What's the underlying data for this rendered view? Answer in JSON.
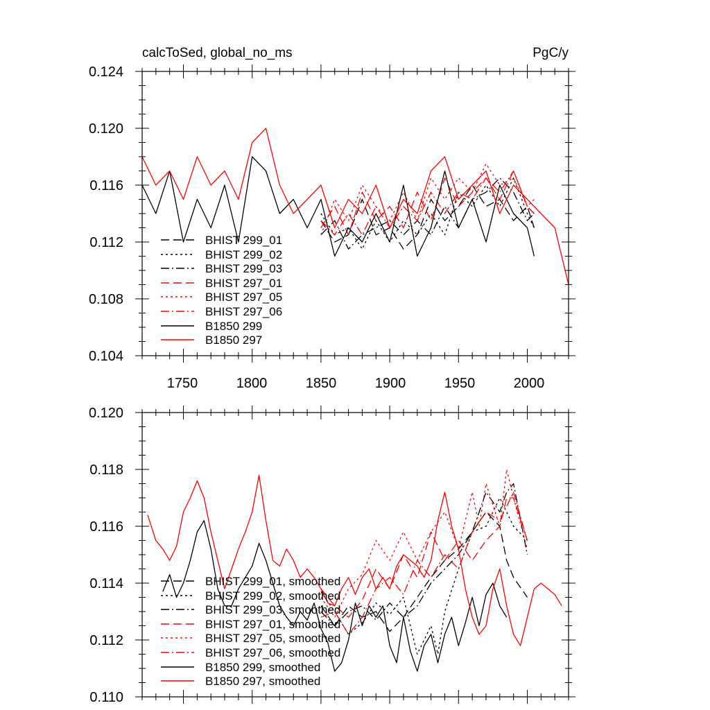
{
  "chart_data": [
    {
      "type": "line",
      "title": "calcToSed, global_no_ms",
      "units": "PgC/y",
      "xlim": [
        1720,
        2030
      ],
      "ylim": [
        0.104,
        0.124
      ],
      "xticks": [
        1750,
        1800,
        1850,
        1900,
        1950,
        2000
      ],
      "yticks": [
        0.104,
        0.108,
        0.112,
        0.116,
        0.12,
        0.124
      ],
      "ytick_labels": [
        "0.104",
        "0.108",
        "0.112",
        "0.116",
        "0.120",
        "0.124"
      ],
      "xtick_labels": [
        "1750",
        "1800",
        "1850",
        "1900",
        "1950",
        "2000"
      ],
      "legend_position": "bottom-left",
      "legend": [
        "BHIST 299_01",
        "BHIST 299_02",
        "BHIST 299_03",
        "BHIST 297_01",
        "BHIST 297_05",
        "BHIST 297_06",
        "B1850 299",
        "B1850 297"
      ],
      "series": [
        {
          "name": "BHIST 299_01",
          "color": "#000000",
          "dash": "long",
          "x": [
            1850,
            1860,
            1870,
            1880,
            1890,
            1900,
            1910,
            1920,
            1930,
            1940,
            1950,
            1960,
            1970,
            1980,
            1990,
            2000,
            2005
          ],
          "y": [
            0.1135,
            0.112,
            0.1125,
            0.115,
            0.1125,
            0.113,
            0.1115,
            0.1125,
            0.115,
            0.1135,
            0.1145,
            0.116,
            0.1145,
            0.115,
            0.1135,
            0.1145,
            0.113
          ]
        },
        {
          "name": "BHIST 299_02",
          "color": "#000000",
          "dash": "short",
          "x": [
            1850,
            1860,
            1870,
            1880,
            1890,
            1900,
            1910,
            1920,
            1930,
            1940,
            1950,
            1960,
            1970,
            1980,
            1990,
            2000,
            2005
          ],
          "y": [
            0.114,
            0.1125,
            0.113,
            0.1115,
            0.1135,
            0.112,
            0.1135,
            0.1125,
            0.114,
            0.1125,
            0.1155,
            0.1145,
            0.116,
            0.1145,
            0.1165,
            0.114,
            0.113
          ]
        },
        {
          "name": "BHIST 299_03",
          "color": "#000000",
          "dash": "dashdot",
          "x": [
            1850,
            1860,
            1870,
            1880,
            1890,
            1900,
            1910,
            1920,
            1930,
            1940,
            1950,
            1960,
            1970,
            1980,
            1990,
            2000,
            2005
          ],
          "y": [
            0.1125,
            0.1135,
            0.1115,
            0.1125,
            0.113,
            0.1135,
            0.1125,
            0.1135,
            0.1125,
            0.1145,
            0.113,
            0.115,
            0.1155,
            0.1165,
            0.1155,
            0.1135,
            0.114
          ]
        },
        {
          "name": "BHIST 297_01",
          "color": "#ff0000",
          "dash": "long",
          "x": [
            1850,
            1860,
            1870,
            1880,
            1890,
            1900,
            1910,
            1920,
            1930,
            1940,
            1950,
            1960,
            1970,
            1980,
            1990,
            2000,
            2005
          ],
          "y": [
            0.113,
            0.1145,
            0.1125,
            0.1155,
            0.1135,
            0.1145,
            0.113,
            0.1155,
            0.1135,
            0.1165,
            0.1145,
            0.1155,
            0.1165,
            0.115,
            0.117,
            0.1145,
            0.114
          ]
        },
        {
          "name": "BHIST 297_05",
          "color": "#ff0000",
          "dash": "short",
          "x": [
            1850,
            1860,
            1870,
            1880,
            1890,
            1900,
            1910,
            1920,
            1930,
            1940,
            1950,
            1960,
            1970,
            1980,
            1990,
            2000,
            2005
          ],
          "y": [
            0.1125,
            0.115,
            0.1135,
            0.116,
            0.1145,
            0.1135,
            0.1155,
            0.1135,
            0.1165,
            0.115,
            0.1165,
            0.1155,
            0.1175,
            0.116,
            0.1165,
            0.1145,
            0.115
          ]
        },
        {
          "name": "BHIST 297_06",
          "color": "#ff0000",
          "dash": "dashdot",
          "x": [
            1850,
            1860,
            1870,
            1880,
            1890,
            1900,
            1910,
            1920,
            1930,
            1940,
            1950,
            1960,
            1970,
            1980,
            1990,
            2000,
            2005
          ],
          "y": [
            0.1135,
            0.1125,
            0.114,
            0.1125,
            0.1145,
            0.113,
            0.1145,
            0.1135,
            0.1155,
            0.114,
            0.1155,
            0.115,
            0.1165,
            0.1155,
            0.117,
            0.1145,
            0.114
          ]
        },
        {
          "name": "B1850 299",
          "color": "#000000",
          "dash": "solid",
          "x": [
            1720,
            1730,
            1740,
            1750,
            1760,
            1770,
            1780,
            1790,
            1800,
            1810,
            1820,
            1830,
            1840,
            1850,
            1860,
            1870,
            1880,
            1890,
            1900,
            1910,
            1920,
            1930,
            1940,
            1950,
            1960,
            1970,
            1980,
            1990,
            2000,
            2005
          ],
          "y": [
            0.116,
            0.114,
            0.117,
            0.112,
            0.115,
            0.113,
            0.116,
            0.112,
            0.118,
            0.117,
            0.114,
            0.115,
            0.113,
            0.115,
            0.111,
            0.113,
            0.112,
            0.114,
            0.112,
            0.116,
            0.111,
            0.113,
            0.117,
            0.113,
            0.115,
            0.112,
            0.116,
            0.114,
            0.113,
            0.111
          ]
        },
        {
          "name": "B1850 297",
          "color": "#ff0000",
          "dash": "solid",
          "x": [
            1720,
            1730,
            1740,
            1750,
            1760,
            1770,
            1780,
            1790,
            1800,
            1810,
            1820,
            1830,
            1840,
            1850,
            1860,
            1870,
            1880,
            1890,
            1900,
            1910,
            1920,
            1930,
            1940,
            1950,
            1960,
            1970,
            1980,
            1990,
            2000,
            2010,
            2020,
            2030
          ],
          "y": [
            0.118,
            0.116,
            0.117,
            0.115,
            0.118,
            0.116,
            0.117,
            0.115,
            0.119,
            0.12,
            0.116,
            0.114,
            0.115,
            0.116,
            0.113,
            0.115,
            0.114,
            0.116,
            0.113,
            0.115,
            0.114,
            0.117,
            0.118,
            0.115,
            0.116,
            0.117,
            0.114,
            0.116,
            0.115,
            0.114,
            0.113,
            0.109
          ]
        }
      ]
    },
    {
      "type": "line",
      "title": "",
      "xlim": [
        1720,
        2030
      ],
      "ylim": [
        0.11,
        0.12
      ],
      "xticks": [
        1750,
        1800,
        1850,
        1900,
        1950,
        2000
      ],
      "yticks": [
        0.11,
        0.112,
        0.114,
        0.116,
        0.118,
        0.12
      ],
      "ytick_labels": [
        "0.110",
        "0.112",
        "0.114",
        "0.116",
        "0.118",
        "0.120"
      ],
      "legend_position": "bottom-left",
      "legend": [
        "BHIST 299_01, smoothed",
        "BHIST 299_02, smoothed",
        "BHIST 299_03, smoothed",
        "BHIST 297_01, smoothed",
        "BHIST 297_05, smoothed",
        "BHIST 297_06, smoothed",
        "B1850 299, smoothed",
        "B1850 297, smoothed"
      ],
      "series": [
        {
          "name": "BHIST 299_01, smoothed",
          "color": "#000000",
          "dash": "long",
          "x": [
            1850,
            1860,
            1870,
            1880,
            1890,
            1900,
            1910,
            1920,
            1930,
            1940,
            1950,
            1960,
            1970,
            1980,
            1985,
            1990,
            2000
          ],
          "y": [
            0.1132,
            0.1125,
            0.1132,
            0.1128,
            0.113,
            0.1123,
            0.1128,
            0.1135,
            0.1142,
            0.1148,
            0.1152,
            0.1158,
            0.1165,
            0.116,
            0.1148,
            0.1142,
            0.1135
          ]
        },
        {
          "name": "BHIST 299_02, smoothed",
          "color": "#000000",
          "dash": "short",
          "x": [
            1850,
            1860,
            1870,
            1880,
            1890,
            1900,
            1910,
            1920,
            1930,
            1935,
            1940,
            1950,
            1960,
            1970,
            1980,
            1990,
            2000
          ],
          "y": [
            0.1137,
            0.113,
            0.1122,
            0.1126,
            0.1133,
            0.1129,
            0.1135,
            0.1115,
            0.1125,
            0.1115,
            0.113,
            0.1145,
            0.1158,
            0.116,
            0.117,
            0.116,
            0.1155
          ]
        },
        {
          "name": "BHIST 299_03, smoothed",
          "color": "#000000",
          "dash": "dashdot",
          "x": [
            1850,
            1860,
            1870,
            1880,
            1890,
            1900,
            1910,
            1920,
            1930,
            1940,
            1950,
            1960,
            1970,
            1980,
            1985,
            1990,
            2000
          ],
          "y": [
            0.113,
            0.1125,
            0.113,
            0.1132,
            0.1127,
            0.1133,
            0.1128,
            0.1132,
            0.114,
            0.1145,
            0.115,
            0.1158,
            0.1172,
            0.1165,
            0.1172,
            0.1175,
            0.115
          ]
        },
        {
          "name": "BHIST 297_01, smoothed",
          "color": "#ff0000",
          "dash": "long",
          "x": [
            1850,
            1860,
            1870,
            1880,
            1890,
            1900,
            1910,
            1920,
            1930,
            1940,
            1950,
            1960,
            1970,
            1980,
            1985,
            1990,
            2000
          ],
          "y": [
            0.1138,
            0.1132,
            0.1128,
            0.1134,
            0.1145,
            0.1138,
            0.115,
            0.1142,
            0.1158,
            0.1148,
            0.1155,
            0.1148,
            0.1155,
            0.116,
            0.117,
            0.117,
            0.1155
          ]
        },
        {
          "name": "BHIST 297_05, smoothed",
          "color": "#ff0000",
          "dash": "short",
          "x": [
            1850,
            1860,
            1870,
            1880,
            1890,
            1900,
            1910,
            1920,
            1930,
            1940,
            1950,
            1960,
            1965,
            1970,
            1980,
            1985,
            1990,
            2000
          ],
          "y": [
            0.1135,
            0.1128,
            0.1138,
            0.1143,
            0.1155,
            0.1148,
            0.1158,
            0.1148,
            0.1158,
            0.1165,
            0.1152,
            0.1172,
            0.116,
            0.1175,
            0.116,
            0.118,
            0.117,
            0.1152
          ]
        },
        {
          "name": "BHIST 297_06, smoothed",
          "color": "#ff0000",
          "dash": "dashdot",
          "x": [
            1850,
            1860,
            1870,
            1880,
            1890,
            1900,
            1910,
            1920,
            1930,
            1940,
            1950,
            1960,
            1970,
            1980,
            1990,
            2000
          ],
          "y": [
            0.1128,
            0.113,
            0.1122,
            0.1128,
            0.1138,
            0.1142,
            0.1136,
            0.1148,
            0.1142,
            0.115,
            0.1145,
            0.1158,
            0.1165,
            0.1162,
            0.1172,
            0.1155
          ]
        },
        {
          "name": "B1850 299, smoothed",
          "color": "#000000",
          "dash": "solid",
          "x": [
            1735,
            1740,
            1745,
            1750,
            1755,
            1760,
            1765,
            1770,
            1775,
            1780,
            1785,
            1790,
            1795,
            1800,
            1805,
            1810,
            1815,
            1820,
            1825,
            1830,
            1835,
            1840,
            1845,
            1850,
            1855,
            1860,
            1865,
            1870,
            1875,
            1880,
            1885,
            1890,
            1895,
            1900,
            1905,
            1910,
            1915,
            1920,
            1925,
            1930,
            1935,
            1940,
            1945,
            1950,
            1955,
            1960,
            1965,
            1970,
            1975,
            1980,
            1985
          ],
          "y": [
            0.1137,
            0.1143,
            0.1135,
            0.114,
            0.1148,
            0.1158,
            0.1162,
            0.1152,
            0.1138,
            0.1132,
            0.1132,
            0.1138,
            0.1142,
            0.1146,
            0.1154,
            0.1148,
            0.114,
            0.1132,
            0.1128,
            0.1125,
            0.113,
            0.1127,
            0.1133,
            0.1124,
            0.1119,
            0.1109,
            0.1112,
            0.112,
            0.1133,
            0.1125,
            0.1132,
            0.1128,
            0.1132,
            0.1118,
            0.1112,
            0.1128,
            0.1116,
            0.1109,
            0.1118,
            0.1122,
            0.1112,
            0.1122,
            0.1128,
            0.1118,
            0.1126,
            0.1135,
            0.1125,
            0.1136,
            0.114,
            0.1132,
            0.1128
          ]
        },
        {
          "name": "B1850 297, smoothed",
          "color": "#ff0000",
          "dash": "solid",
          "x": [
            1724,
            1730,
            1735,
            1740,
            1745,
            1750,
            1755,
            1760,
            1765,
            1770,
            1775,
            1780,
            1785,
            1790,
            1795,
            1800,
            1805,
            1810,
            1815,
            1820,
            1825,
            1830,
            1835,
            1840,
            1845,
            1850,
            1855,
            1860,
            1865,
            1870,
            1875,
            1880,
            1885,
            1890,
            1895,
            1900,
            1905,
            1910,
            1915,
            1920,
            1925,
            1930,
            1935,
            1940,
            1945,
            1950,
            1955,
            1960,
            1965,
            1970,
            1975,
            1980,
            1985,
            1990,
            1995,
            2000,
            2005,
            2010,
            2015,
            2020,
            2025
          ],
          "y": [
            0.1164,
            0.1155,
            0.1152,
            0.1148,
            0.1153,
            0.1165,
            0.117,
            0.1176,
            0.117,
            0.1158,
            0.1148,
            0.1138,
            0.1145,
            0.1152,
            0.1158,
            0.1165,
            0.1178,
            0.1162,
            0.1148,
            0.1146,
            0.1152,
            0.1148,
            0.1142,
            0.1145,
            0.1142,
            0.1138,
            0.1133,
            0.1132,
            0.1138,
            0.1142,
            0.1136,
            0.1142,
            0.1145,
            0.1138,
            0.1142,
            0.1138,
            0.1146,
            0.115,
            0.1148,
            0.1146,
            0.1142,
            0.1148,
            0.1162,
            0.1172,
            0.116,
            0.1152,
            0.1138,
            0.1128,
            0.1122,
            0.1125,
            0.1138,
            0.1145,
            0.1132,
            0.1122,
            0.1118,
            0.1128,
            0.1138,
            0.114,
            0.1138,
            0.1136,
            0.1132
          ]
        }
      ]
    }
  ]
}
